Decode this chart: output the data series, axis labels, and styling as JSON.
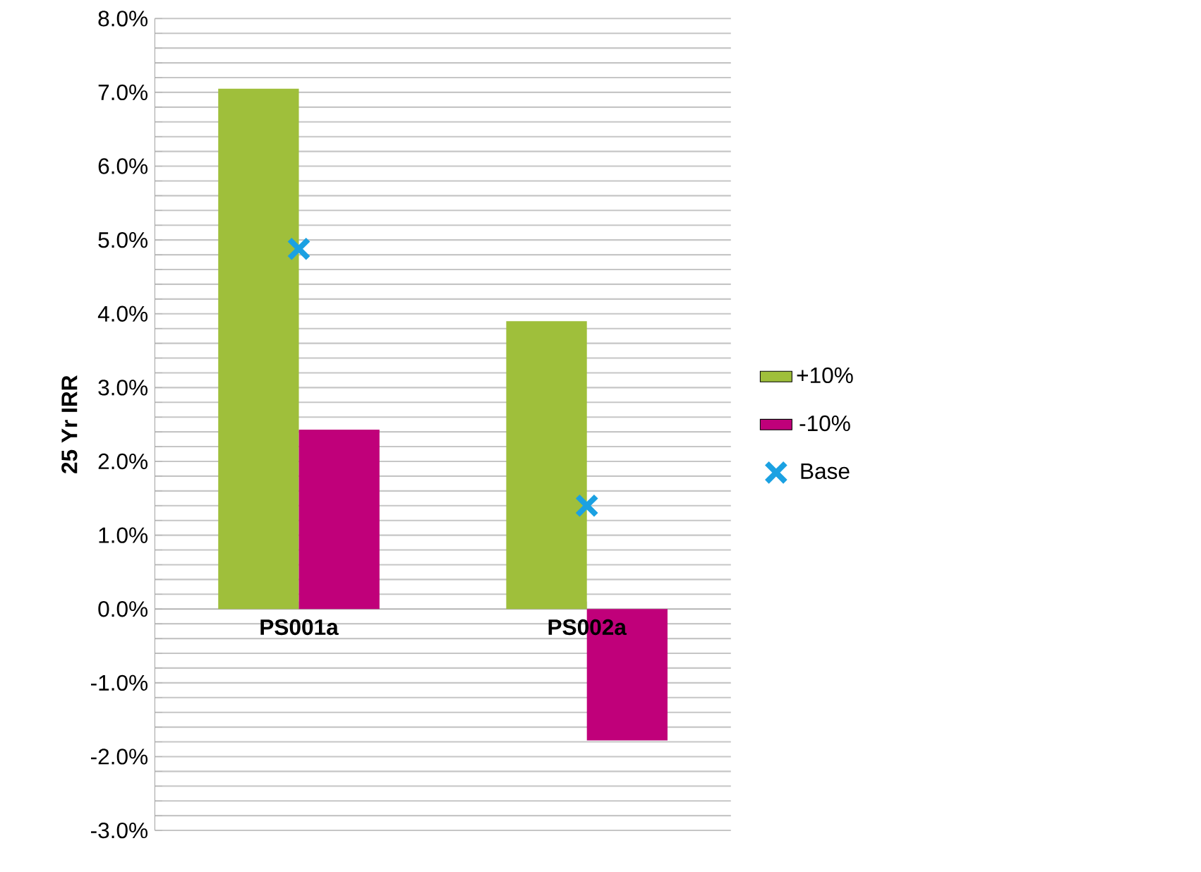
{
  "chart_data": {
    "type": "bar",
    "ylabel": "25 Yr IRR",
    "categories": [
      "PS001a",
      "PS002a"
    ],
    "series": [
      {
        "name": "+10%",
        "color": "#9fbf3b",
        "values": [
          7.05,
          3.9
        ]
      },
      {
        "name": "-10%",
        "color": "#c0007a",
        "values": [
          2.43,
          -1.78
        ]
      },
      {
        "name": "Base",
        "type": "scatter",
        "marker": "cross",
        "color": "#1ba1e2",
        "x": [
          "PS001a",
          "PS002a"
        ],
        "values": [
          4.88,
          1.4
        ]
      }
    ],
    "ylim": [
      -3,
      8
    ],
    "yticks": [
      {
        "value": -3,
        "label": "-3.0%"
      },
      {
        "value": -2.8,
        "label": null
      },
      {
        "value": -2.6,
        "label": null
      },
      {
        "value": -2.4,
        "label": null
      },
      {
        "value": -2.2,
        "label": null
      },
      {
        "value": -2,
        "label": "-2.0%"
      },
      {
        "value": -1.8,
        "label": null
      },
      {
        "value": -1.6,
        "label": null
      },
      {
        "value": -1.4,
        "label": null
      },
      {
        "value": -1.2,
        "label": null
      },
      {
        "value": -1,
        "label": "-1.0%"
      },
      {
        "value": -0.8,
        "label": null
      },
      {
        "value": -0.6,
        "label": null
      },
      {
        "value": -0.4,
        "label": null
      },
      {
        "value": -0.2,
        "label": null
      },
      {
        "value": 0,
        "label": "0.0%"
      },
      {
        "value": 0.2,
        "label": null
      },
      {
        "value": 0.4,
        "label": null
      },
      {
        "value": 0.6,
        "label": null
      },
      {
        "value": 0.8,
        "label": null
      },
      {
        "value": 1,
        "label": "1.0%"
      },
      {
        "value": 1.2,
        "label": null
      },
      {
        "value": 1.4,
        "label": null
      },
      {
        "value": 1.6,
        "label": null
      },
      {
        "value": 1.8,
        "label": null
      },
      {
        "value": 2,
        "label": "2.0%"
      },
      {
        "value": 2.2,
        "label": null
      },
      {
        "value": 2.4,
        "label": null
      },
      {
        "value": 2.6,
        "label": null
      },
      {
        "value": 2.8,
        "label": null
      },
      {
        "value": 3,
        "label": "3.0%"
      },
      {
        "value": 3.2,
        "label": null
      },
      {
        "value": 3.4,
        "label": null
      },
      {
        "value": 3.6,
        "label": null
      },
      {
        "value": 3.8,
        "label": null
      },
      {
        "value": 4,
        "label": "4.0%"
      },
      {
        "value": 4.2,
        "label": null
      },
      {
        "value": 4.4,
        "label": null
      },
      {
        "value": 4.6,
        "label": null
      },
      {
        "value": 4.8,
        "label": null
      },
      {
        "value": 5,
        "label": "5.0%"
      },
      {
        "value": 5.2,
        "label": null
      },
      {
        "value": 5.4,
        "label": null
      },
      {
        "value": 5.6,
        "label": null
      },
      {
        "value": 5.8,
        "label": null
      },
      {
        "value": 6,
        "label": "6.0%"
      },
      {
        "value": 6.2,
        "label": null
      },
      {
        "value": 6.4,
        "label": null
      },
      {
        "value": 6.6,
        "label": null
      },
      {
        "value": 6.8,
        "label": null
      },
      {
        "value": 7,
        "label": "7.0%"
      },
      {
        "value": 7.2,
        "label": null
      },
      {
        "value": 7.4,
        "label": null
      },
      {
        "value": 7.6,
        "label": null
      },
      {
        "value": 7.8,
        "label": null
      },
      {
        "value": 8,
        "label": "8.0%"
      }
    ],
    "grid": "y",
    "legend": "right"
  }
}
